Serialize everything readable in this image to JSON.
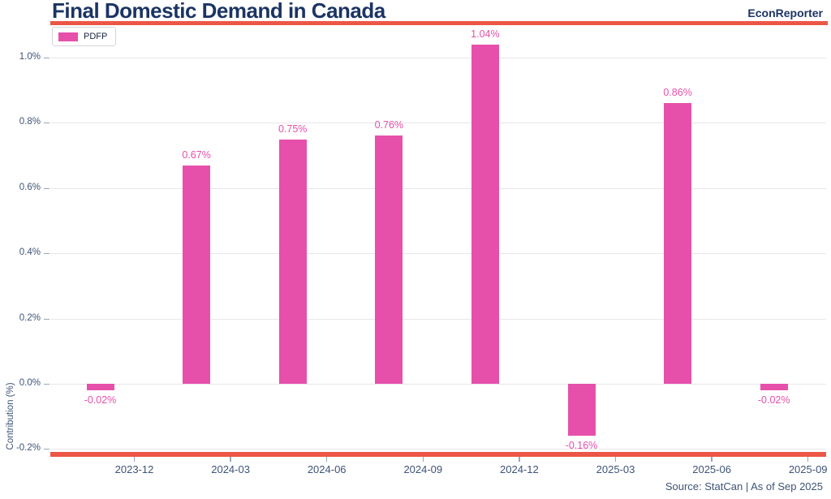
{
  "header": {
    "title": "Final Domestic Demand in Canada",
    "brand": "EconReporter"
  },
  "legend": {
    "label": "PDFP"
  },
  "footer": {
    "source": "Source: StatCan | As of Sep 2025"
  },
  "colors": {
    "bar": "#e650ab",
    "accent_line": "#ec5646",
    "title_text": "#1b3464",
    "tick_text": "#3e5378",
    "grid_line": "#e7e7ec"
  },
  "chart_data": {
    "type": "bar",
    "title": "Final Domestic Demand in Canada",
    "ylabel": "Contribution (%)",
    "series": [
      {
        "name": "PDFP",
        "values": [
          -0.02,
          0.67,
          0.75,
          0.76,
          1.04,
          -0.16,
          0.86,
          -0.02
        ],
        "labels": [
          "-0.02%",
          "0.67%",
          "0.75%",
          "0.76%",
          "1.04%",
          "-0.16%",
          "0.86%",
          "-0.02%"
        ]
      }
    ],
    "x_tick_labels": [
      "2023-12",
      "2024-03",
      "2024-06",
      "2024-09",
      "2024-12",
      "2025-03",
      "2025-06",
      "2025-09"
    ],
    "y_ticks": [
      1.0,
      0.8,
      0.6,
      0.4,
      0.2,
      0.0,
      -0.2
    ],
    "y_tick_labels": [
      "1.0%",
      "0.8%",
      "0.6%",
      "0.4%",
      "0.2%",
      "0.0%",
      "-0.2%"
    ],
    "ylim": [
      -0.21,
      1.1
    ],
    "grid": "horizontal",
    "legend_position": "top-left",
    "bar_color": "#e650ab"
  }
}
